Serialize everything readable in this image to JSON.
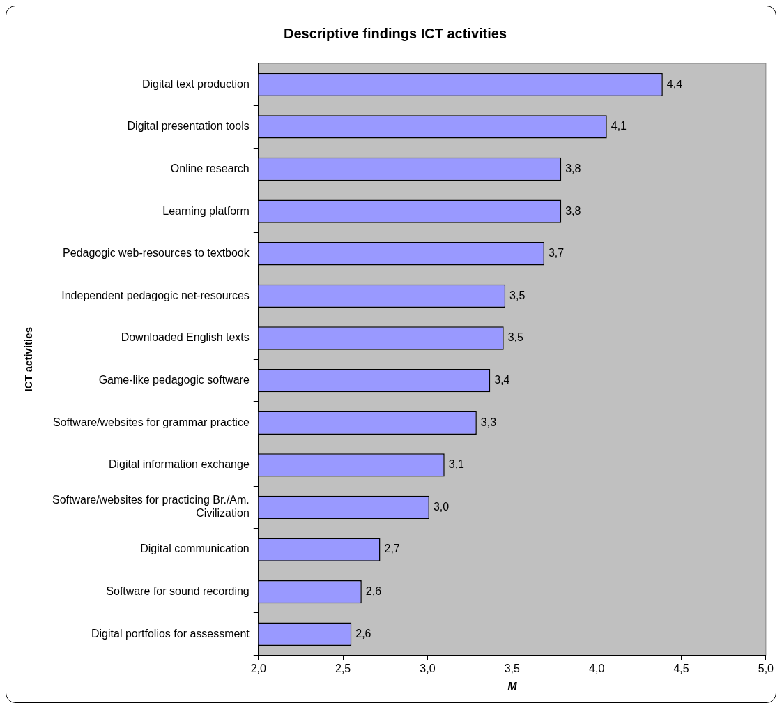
{
  "chart_data": {
    "type": "bar",
    "orientation": "horizontal",
    "title": "Descriptive findings ICT activities",
    "xlabel": "M",
    "ylabel": "ICT activities",
    "categories": [
      "Digital text production",
      "Digital presentation tools",
      "Online research",
      "Learning platform",
      "Pedagogic web-resources to textbook",
      "Independent pedagogic net-resources",
      "Downloaded English texts",
      "Game-like pedagogic software",
      "Software/websites for grammar practice",
      "Digital information exchange",
      "Software/websites for practicing Br./Am. Civilization",
      "Digital communication",
      "Software for sound recording",
      "Digital portfolios for assessment"
    ],
    "values": [
      4.39,
      4.06,
      3.79,
      3.79,
      3.69,
      3.46,
      3.45,
      3.37,
      3.29,
      3.1,
      3.01,
      2.72,
      2.61,
      2.55
    ],
    "value_labels": [
      "4,4",
      "4,1",
      "3,8",
      "3,8",
      "3,7",
      "3,5",
      "3,5",
      "3,4",
      "3,3",
      "3,1",
      "3,0",
      "2,7",
      "2,6",
      "2,6"
    ],
    "color": "#9999ff",
    "xlim": [
      2,
      5
    ],
    "xticks": [
      {
        "value": 2,
        "label": "2,0"
      },
      {
        "value": 2.5,
        "label": "2,5"
      },
      {
        "value": 3,
        "label": "3,0"
      },
      {
        "value": 3.5,
        "label": "3,5"
      },
      {
        "value": 4,
        "label": "4,0"
      },
      {
        "value": 4.5,
        "label": "4,5"
      },
      {
        "value": 5,
        "label": "5,0"
      }
    ],
    "grid": false,
    "legend": false
  }
}
